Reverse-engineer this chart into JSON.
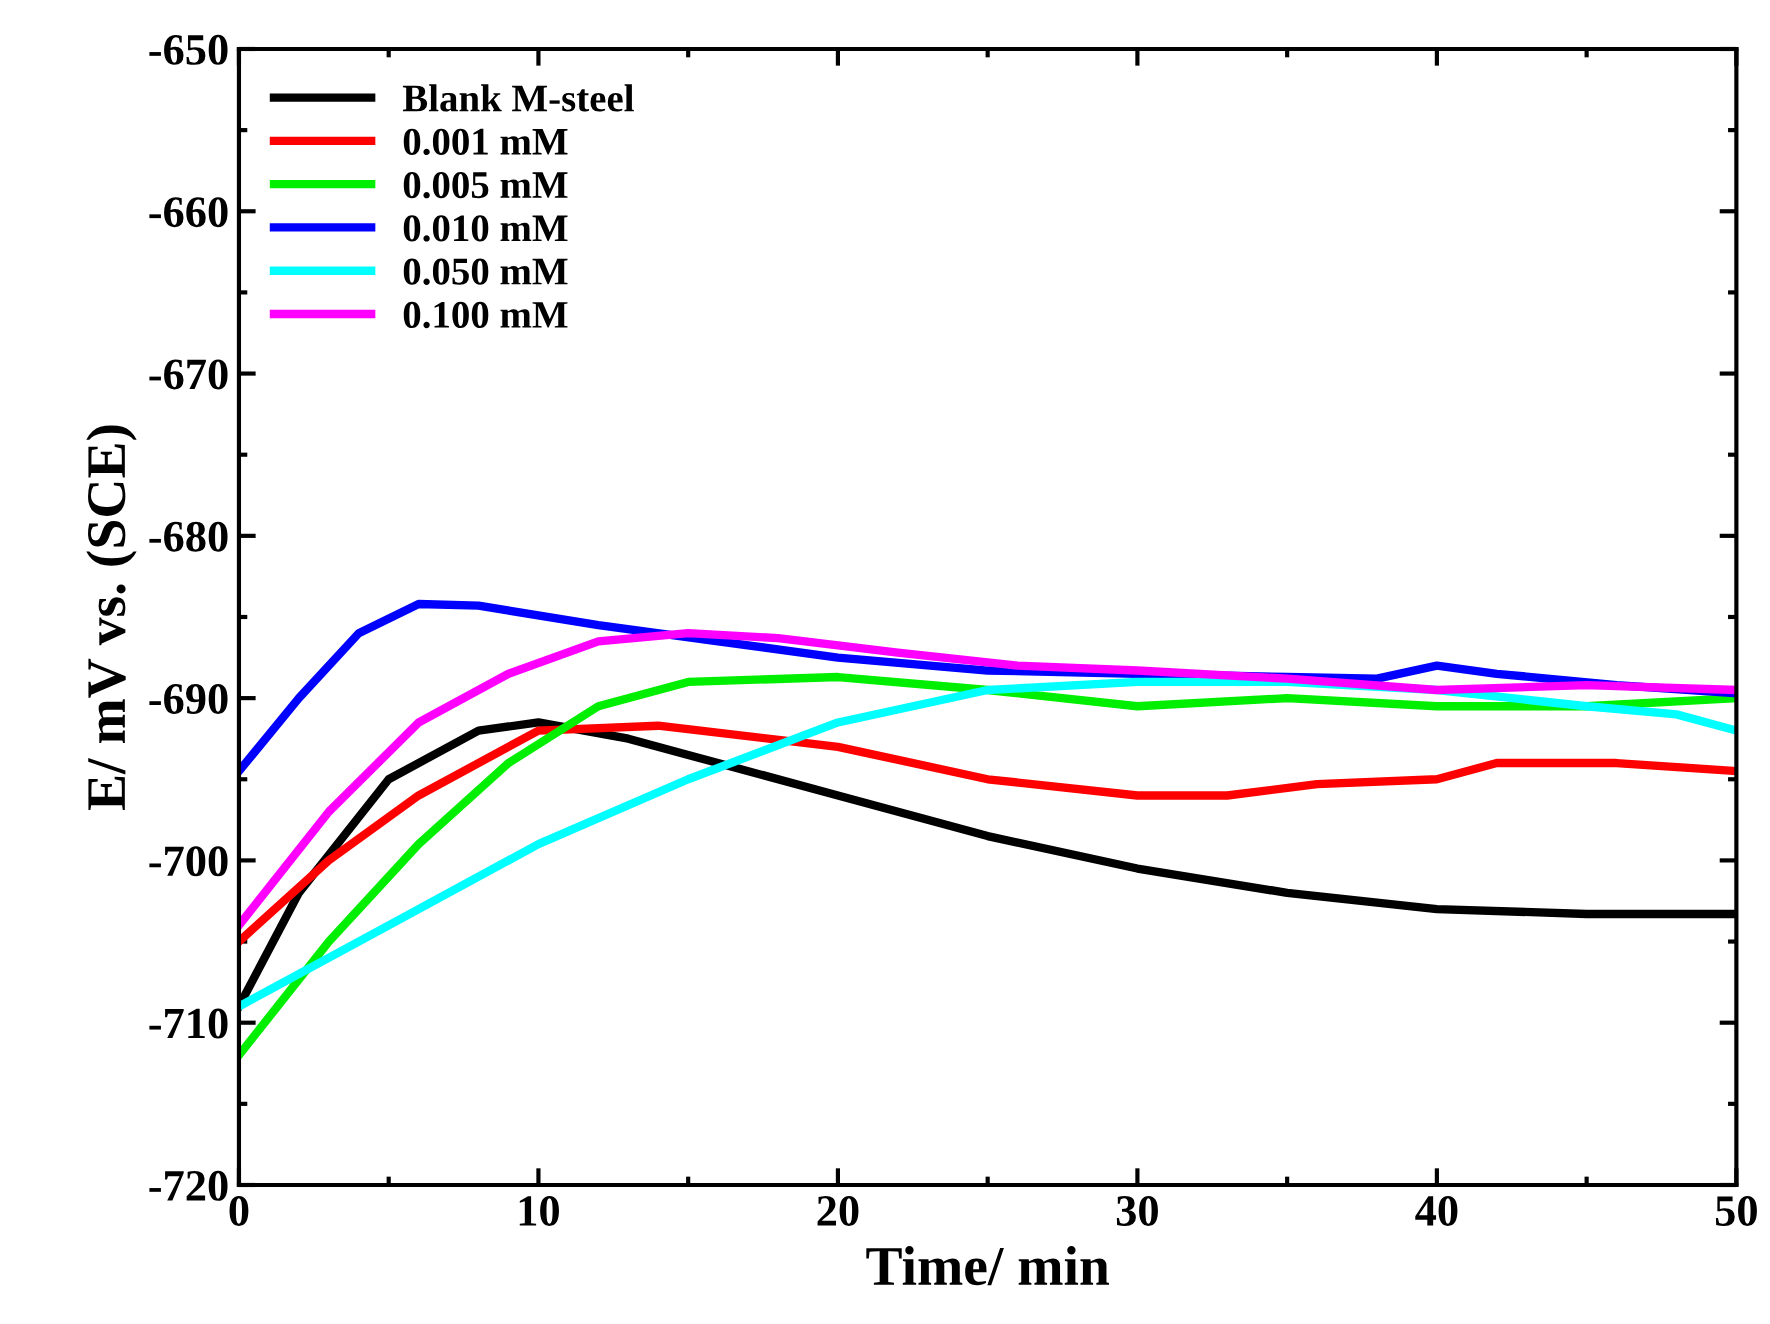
{
  "chart_data": {
    "type": "line",
    "xlabel": "Time/ min",
    "ylabel": "E/ mV vs. (SCE)",
    "xlim": [
      0,
      50
    ],
    "ylim": [
      -720,
      -650
    ],
    "xticks": [
      0,
      10,
      20,
      30,
      40,
      50
    ],
    "yticks": [
      -720,
      -710,
      -700,
      -690,
      -680,
      -670,
      -660,
      -650
    ],
    "legend": "top left",
    "grid": false,
    "line_style": "solid",
    "series": [
      {
        "name": "Blank M-steel",
        "color": "#000000",
        "x": [
          0,
          2,
          5,
          8,
          10,
          13,
          15,
          20,
          25,
          30,
          35,
          40,
          45,
          50
        ],
        "values": [
          -709,
          -702,
          -695,
          -692,
          -691.5,
          -692.5,
          -693.5,
          -696,
          -698.5,
          -700.5,
          -702,
          -703,
          -703.3,
          -703.3
        ]
      },
      {
        "name": "0.001 mM",
        "color": "#ff0000",
        "x": [
          0,
          3,
          6,
          10,
          14,
          20,
          25,
          30,
          33,
          36,
          40,
          42,
          46,
          50
        ],
        "values": [
          -705,
          -700,
          -696,
          -692,
          -691.7,
          -693,
          -695,
          -696,
          -696,
          -695.3,
          -695,
          -694,
          -694,
          -694.5
        ]
      },
      {
        "name": "0.005 mM",
        "color": "#00ee00",
        "x": [
          0,
          3,
          6,
          9,
          12,
          15,
          20,
          25,
          30,
          35,
          40,
          45,
          50
        ],
        "values": [
          -712,
          -705,
          -699,
          -694,
          -690.5,
          -689,
          -688.7,
          -689.5,
          -690.5,
          -690,
          -690.5,
          -690.5,
          -690
        ]
      },
      {
        "name": "0.010 mM",
        "color": "#0000ff",
        "x": [
          0,
          2,
          4,
          6,
          8,
          12,
          16,
          20,
          25,
          30,
          35,
          38,
          40,
          42,
          46,
          50
        ],
        "values": [
          -694.5,
          -690,
          -686,
          -684.2,
          -684.3,
          -685.5,
          -686.5,
          -687.5,
          -688.3,
          -688.5,
          -688.7,
          -688.8,
          -688,
          -688.5,
          -689.2,
          -689.7
        ]
      },
      {
        "name": "0.050 mM",
        "color": "#00ffff",
        "x": [
          0,
          5,
          10,
          15,
          20,
          25,
          30,
          35,
          40,
          45,
          48,
          50
        ],
        "values": [
          -709,
          -704,
          -699,
          -695,
          -691.5,
          -689.5,
          -689,
          -689,
          -689.5,
          -690.5,
          -691,
          -692
        ]
      },
      {
        "name": "0.100 mM",
        "color": "#ff00ff",
        "x": [
          0,
          3,
          6,
          9,
          12,
          15,
          18,
          22,
          26,
          30,
          35,
          40,
          45,
          50
        ],
        "values": [
          -704,
          -697,
          -691.5,
          -688.5,
          -686.5,
          -686,
          -686.3,
          -687.2,
          -688,
          -688.3,
          -688.8,
          -689.5,
          -689.2,
          -689.5
        ]
      }
    ]
  }
}
